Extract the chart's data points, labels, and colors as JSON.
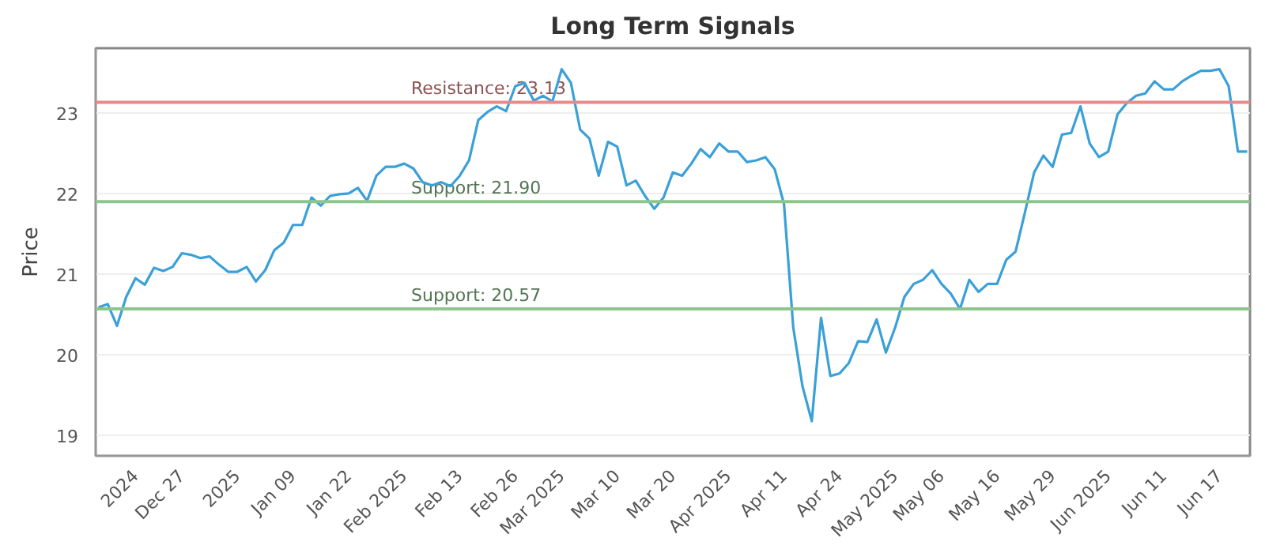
{
  "chart_data": {
    "type": "line",
    "title": "Long Term Signals",
    "ylabel": "Price",
    "categories": [
      null,
      null,
      null,
      null,
      "2024",
      null,
      null,
      null,
      null,
      "Dec 27",
      null,
      null,
      null,
      null,
      null,
      "2025",
      null,
      null,
      null,
      null,
      null,
      "Jan 09",
      null,
      null,
      null,
      null,
      null,
      "Jan 22",
      null,
      null,
      null,
      null,
      null,
      "Feb 2025",
      null,
      null,
      null,
      null,
      null,
      "Feb 13",
      null,
      null,
      null,
      null,
      null,
      "Feb 26",
      null,
      null,
      null,
      null,
      "Mar 2025",
      null,
      null,
      null,
      null,
      null,
      "Mar 10",
      null,
      null,
      null,
      null,
      null,
      "Mar 20",
      null,
      null,
      null,
      null,
      null,
      "Apr 2025",
      null,
      null,
      null,
      null,
      null,
      "Apr 11",
      null,
      null,
      null,
      null,
      null,
      "Apr 24",
      null,
      null,
      null,
      null,
      null,
      "May 2025",
      null,
      null,
      null,
      null,
      "May 06",
      null,
      null,
      null,
      null,
      null,
      "May 16",
      null,
      null,
      null,
      null,
      null,
      "May 29",
      null,
      null,
      null,
      null,
      null,
      "Jun 2025",
      null,
      null,
      null,
      null,
      null,
      "Jun 11",
      null,
      null,
      null,
      null,
      null,
      "Jun 17",
      null,
      null,
      null
    ],
    "series": [
      {
        "color": "#3aa0d8",
        "values": [
          20.59,
          20.63,
          20.36,
          20.72,
          20.95,
          20.87,
          21.08,
          21.04,
          21.09,
          21.26,
          21.24,
          21.2,
          21.22,
          21.12,
          21.03,
          21.03,
          21.09,
          20.91,
          21.05,
          21.3,
          21.39,
          21.61,
          21.61,
          21.95,
          21.85,
          21.97,
          21.99,
          22.0,
          22.07,
          21.91,
          22.22,
          22.33,
          22.33,
          22.37,
          22.31,
          22.14,
          22.1,
          22.14,
          22.09,
          22.22,
          22.41,
          22.91,
          23.01,
          23.08,
          23.02,
          23.33,
          23.37,
          23.15,
          23.21,
          23.14,
          23.54,
          23.37,
          22.79,
          22.68,
          22.22,
          22.64,
          22.58,
          22.1,
          22.16,
          21.97,
          21.81,
          21.95,
          22.26,
          22.22,
          22.37,
          22.55,
          22.45,
          22.62,
          22.52,
          22.52,
          22.39,
          22.41,
          22.45,
          22.3,
          21.87,
          20.34,
          19.61,
          19.18,
          20.46,
          19.74,
          19.77,
          19.9,
          20.17,
          20.16,
          20.44,
          20.03,
          20.34,
          20.72,
          20.88,
          20.93,
          21.05,
          20.88,
          20.76,
          20.57,
          20.93,
          20.78,
          20.88,
          20.88,
          21.18,
          21.28,
          21.76,
          22.26,
          22.47,
          22.33,
          22.73,
          22.75,
          23.08,
          22.62,
          22.45,
          22.52,
          22.98,
          23.12,
          23.21,
          23.24,
          23.39,
          23.29,
          23.29,
          23.39,
          23.46,
          23.52,
          23.52,
          23.54,
          23.33,
          22.52,
          22.52
        ]
      }
    ],
    "ylim": [
      18.75,
      23.8
    ],
    "yticks": [
      19,
      20,
      21,
      22,
      23
    ],
    "grid": "y",
    "ref_lines": [
      {
        "axis": "y",
        "value": 23.13,
        "label": "Resistance: 23.13",
        "color": "#e88a8a"
      },
      {
        "axis": "y",
        "value": 21.9,
        "label": "Support: 21.90",
        "color": "#8cc68c"
      },
      {
        "axis": "y",
        "value": 20.57,
        "label": "Support: 20.57",
        "color": "#8cc68c"
      }
    ]
  }
}
